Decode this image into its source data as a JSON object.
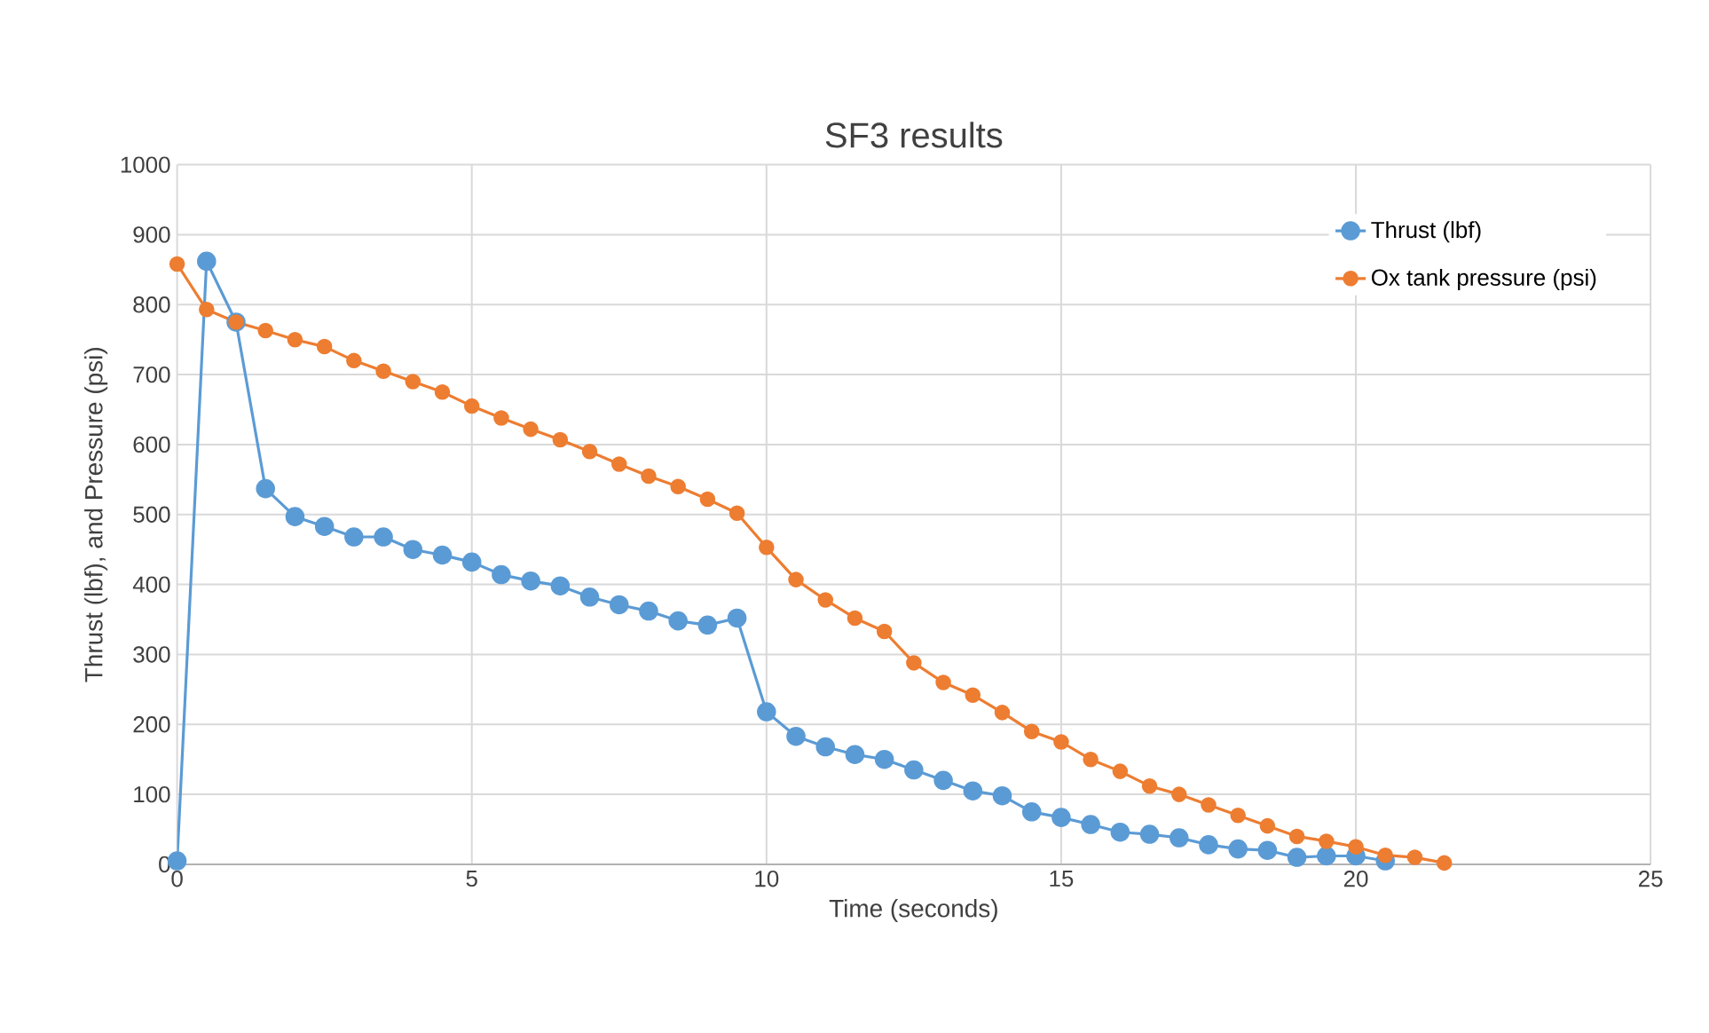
{
  "chart_data": {
    "type": "line",
    "title": "SF3 results",
    "xlabel": "Time (seconds)",
    "ylabel": "Thrust (lbf), and Pressure (psi)",
    "xlim": [
      0,
      25
    ],
    "xticks": [
      0,
      5,
      10,
      15,
      20,
      25
    ],
    "ylim": [
      0,
      1000
    ],
    "yticks": [
      0,
      100,
      200,
      300,
      400,
      500,
      600,
      700,
      800,
      900,
      1000
    ],
    "grid": true,
    "legend": "top right",
    "marker": "circle",
    "line_style": "solid",
    "series": [
      {
        "name": "Thrust (lbf)",
        "color": "#5b9bd5",
        "x": [
          0,
          0.5,
          1,
          1.5,
          2,
          2.5,
          3,
          3.5,
          4,
          4.5,
          5,
          5.5,
          6,
          6.5,
          7,
          7.5,
          8,
          8.5,
          9,
          9.5,
          10,
          10.5,
          11,
          11.5,
          12,
          12.5,
          13,
          13.5,
          14,
          14.5,
          15,
          15.5,
          16,
          16.5,
          17,
          17.5,
          18,
          18.5,
          19,
          19.5,
          20,
          20.5
        ],
        "values": [
          5,
          862,
          775,
          537,
          497,
          483,
          468,
          468,
          450,
          442,
          432,
          414,
          405,
          398,
          382,
          371,
          362,
          348,
          342,
          352,
          218,
          183,
          168,
          157,
          150,
          135,
          120,
          105,
          98,
          75,
          67,
          57,
          46,
          43,
          38,
          28,
          22,
          20,
          10,
          12,
          12,
          5
        ]
      },
      {
        "name": "Ox tank pressure (psi)",
        "color": "#ed7d31",
        "x": [
          0,
          0.5,
          1,
          1.5,
          2,
          2.5,
          3,
          3.5,
          4,
          4.5,
          5,
          5.5,
          6,
          6.5,
          7,
          7.5,
          8,
          8.5,
          9,
          9.5,
          10,
          10.5,
          11,
          11.5,
          12,
          12.5,
          13,
          13.5,
          14,
          14.5,
          15,
          15.5,
          16,
          16.5,
          17,
          17.5,
          18,
          18.5,
          19,
          19.5,
          20,
          20.5,
          21,
          21.5
        ],
        "values": [
          858,
          793,
          775,
          763,
          750,
          740,
          720,
          705,
          690,
          675,
          655,
          638,
          622,
          607,
          590,
          572,
          555,
          540,
          522,
          502,
          453,
          407,
          378,
          352,
          333,
          288,
          260,
          242,
          217,
          190,
          175,
          150,
          133,
          112,
          100,
          85,
          70,
          55,
          40,
          33,
          25,
          13,
          10,
          2
        ]
      }
    ]
  }
}
